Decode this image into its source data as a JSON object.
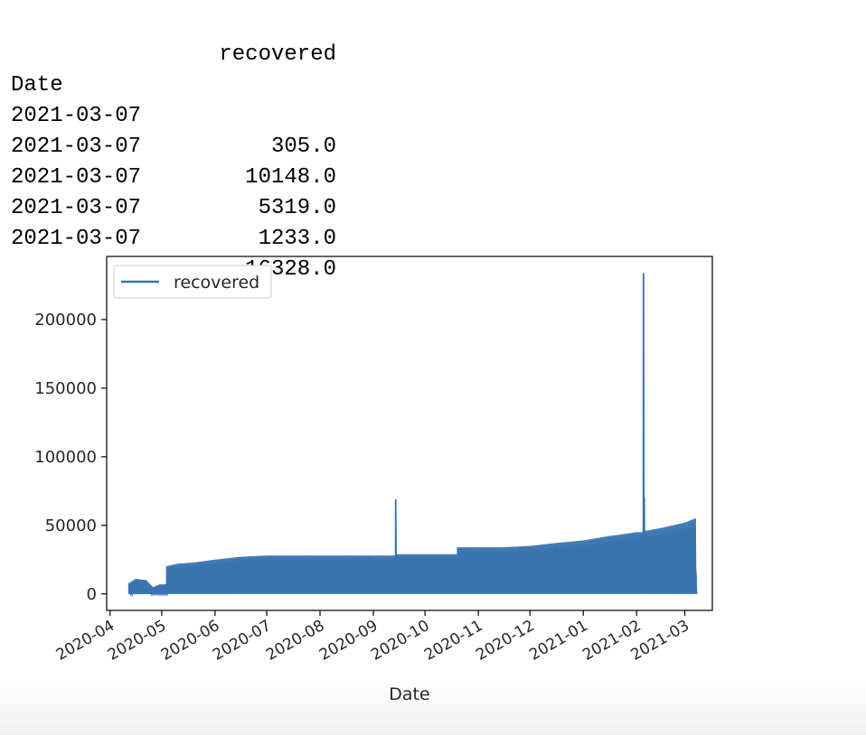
{
  "table": {
    "column_header": "recovered",
    "index_name": "Date",
    "rows": [
      {
        "date": "2021-03-07",
        "recovered": "305.0"
      },
      {
        "date": "2021-03-07",
        "recovered": "10148.0"
      },
      {
        "date": "2021-03-07",
        "recovered": "5319.0"
      },
      {
        "date": "2021-03-07",
        "recovered": "1233.0"
      },
      {
        "date": "2021-03-07",
        "recovered": "16328.0"
      }
    ]
  },
  "chart_data": {
    "type": "line",
    "title": "",
    "xlabel": "Date",
    "ylabel": "",
    "legend": {
      "entries": [
        "recovered"
      ],
      "placement": "upper-left"
    },
    "grid": false,
    "color": "#3a74b0",
    "xlim": [
      "2020-03-30",
      "2021-03-17"
    ],
    "ylim": [
      -12000,
      246000
    ],
    "xticks": [
      "2020-04",
      "2020-05",
      "2020-06",
      "2020-07",
      "2020-08",
      "2020-09",
      "2020-10",
      "2020-11",
      "2020-12",
      "2021-01",
      "2021-02",
      "2021-03"
    ],
    "yticks": [
      0,
      50000,
      100000,
      150000,
      200000
    ],
    "ytick_labels": [
      "0",
      "50000",
      "100000",
      "150000",
      "200000"
    ],
    "series": [
      {
        "name": "recovered",
        "note_approx": "daily per-region values plotted in row order; each day cycles from ~0 up to a daily peak",
        "daily_peak_envelope": [
          {
            "date": "2020-04-12",
            "value": 8000
          },
          {
            "date": "2020-04-16",
            "value": 11000
          },
          {
            "date": "2020-04-22",
            "value": 10000
          },
          {
            "date": "2020-04-26",
            "value": 5000
          },
          {
            "date": "2020-04-30",
            "value": 7000
          },
          {
            "date": "2020-05-03",
            "value": 20000
          },
          {
            "date": "2020-05-10",
            "value": 22000
          },
          {
            "date": "2020-05-20",
            "value": 23000
          },
          {
            "date": "2020-06-01",
            "value": 25000
          },
          {
            "date": "2020-06-15",
            "value": 27000
          },
          {
            "date": "2020-07-01",
            "value": 28000
          },
          {
            "date": "2020-08-01",
            "value": 28000
          },
          {
            "date": "2020-09-01",
            "value": 28000
          },
          {
            "date": "2020-09-14",
            "value": 69000
          },
          {
            "date": "2020-09-15",
            "value": 29000
          },
          {
            "date": "2020-10-19",
            "value": 29000
          },
          {
            "date": "2020-10-20",
            "value": 34000
          },
          {
            "date": "2020-11-15",
            "value": 34000
          },
          {
            "date": "2020-12-01",
            "value": 35000
          },
          {
            "date": "2020-12-15",
            "value": 37000
          },
          {
            "date": "2021-01-01",
            "value": 39000
          },
          {
            "date": "2021-01-15",
            "value": 42000
          },
          {
            "date": "2021-02-01",
            "value": 45000
          },
          {
            "date": "2021-02-05",
            "value": 234000
          },
          {
            "date": "2021-02-06",
            "value": 46000
          },
          {
            "date": "2021-02-15",
            "value": 48000
          },
          {
            "date": "2021-03-01",
            "value": 52000
          },
          {
            "date": "2021-03-07",
            "value": 55000
          }
        ]
      }
    ]
  }
}
